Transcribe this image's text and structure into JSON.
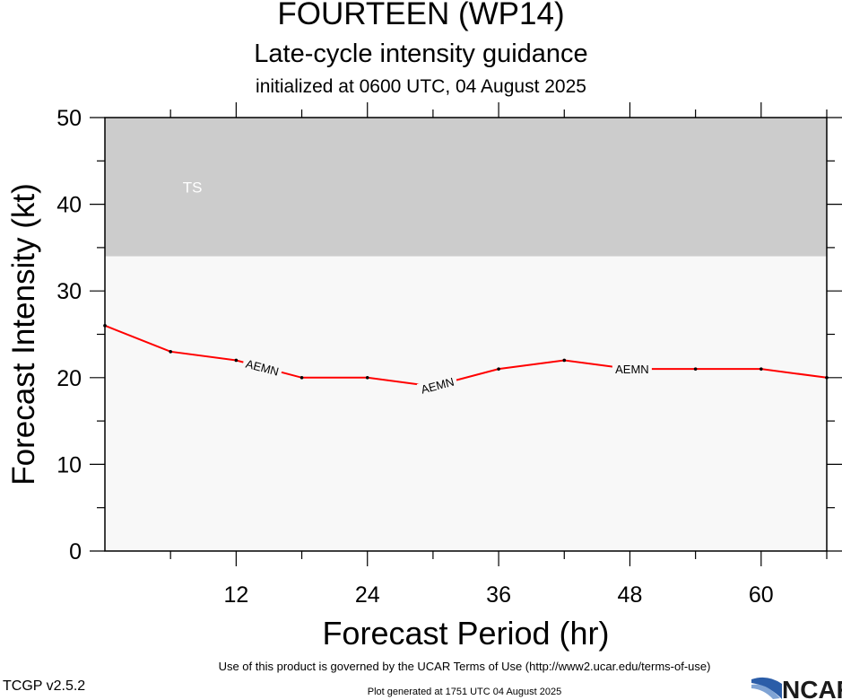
{
  "header": {
    "title": "FOURTEEN (WP14)",
    "subtitle": "Late-cycle intensity guidance",
    "init_line": "initialized at 0600 UTC, 04 August 2025"
  },
  "chart_data": {
    "type": "line",
    "xlabel": "Forecast Period (hr)",
    "ylabel": "Forecast Intensity (kt)",
    "xlim": [
      0,
      66
    ],
    "ylim": [
      0,
      50
    ],
    "x_ticks": [
      12,
      24,
      36,
      48,
      60
    ],
    "x_minor_ticks": [
      6,
      18,
      30,
      42,
      54,
      66
    ],
    "y_ticks": [
      0,
      10,
      20,
      30,
      40,
      50
    ],
    "y_minor_ticks": [
      5,
      15,
      25,
      35,
      45
    ],
    "grid": false,
    "bands": [
      {
        "label": "TS",
        "from": 34,
        "to": 50,
        "color": "#cccccc",
        "label_x": 8,
        "label_y": 42
      }
    ],
    "background_color": "#f8f8f8",
    "series": [
      {
        "name": "AEMN",
        "color": "#ff0000",
        "x": [
          0,
          6,
          12,
          18,
          24,
          30,
          36,
          42,
          48,
          54,
          60,
          66
        ],
        "y": [
          26,
          23,
          22,
          20,
          20,
          19,
          21,
          22,
          21,
          21,
          21,
          20
        ],
        "inline_label_x": [
          14.4,
          30.4,
          48.2
        ]
      }
    ]
  },
  "footer": {
    "terms": "Use of this product is governed by the UCAR Terms of Use (http://www2.ucar.edu/terms-of-use)",
    "version": "TCGP v2.5.2",
    "generated": "Plot generated at 1751 UTC   04 August 2025",
    "logo_text": "NCAR"
  }
}
